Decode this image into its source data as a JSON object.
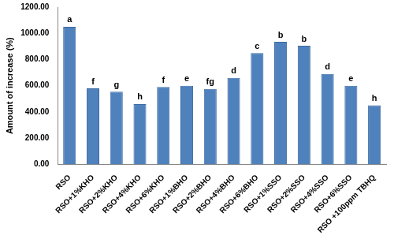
{
  "chart_data": {
    "type": "bar",
    "y_label": "Amount of increase (%)",
    "categories": [
      "RSO",
      "RSO+1%KHO",
      "RSO+2%KHO",
      "RSO+4%KHO",
      "RSO+6%KHO",
      "RSO+1%BHO",
      "RSO+2%BHO",
      "RSO+4%BHO",
      "RSO+6%BHO",
      "RSO+1%SSO",
      "RSO+2%SSO",
      "RSO+4%SSO",
      "RSO+6%SSO",
      "RSO +100ppm TBHQ"
    ],
    "values": [
      1050,
      580,
      555,
      460,
      590,
      600,
      575,
      660,
      850,
      935,
      905,
      690,
      600,
      450
    ],
    "color": "#4f81bd",
    "ylim": [
      0,
      1200
    ],
    "yticks": [
      {
        "value": 0,
        "label": "0.00"
      },
      {
        "value": 200,
        "label": "200.00"
      },
      {
        "value": 400,
        "label": "400.00"
      },
      {
        "value": 600,
        "label": "600.00"
      },
      {
        "value": 800,
        "label": "800.00"
      },
      {
        "value": 1000,
        "label": "1000.00"
      },
      {
        "value": 1200,
        "label": "1200.00"
      }
    ],
    "grid": false,
    "annotations": [
      {
        "category": "RSO",
        "text": "a"
      },
      {
        "category": "RSO+1%KHO",
        "text": "f"
      },
      {
        "category": "RSO+2%KHO",
        "text": "g"
      },
      {
        "category": "RSO+4%KHO",
        "text": "h"
      },
      {
        "category": "RSO+6%KHO",
        "text": "f"
      },
      {
        "category": "RSO+1%BHO",
        "text": "e"
      },
      {
        "category": "RSO+2%BHO",
        "text": "fg"
      },
      {
        "category": "RSO+4%BHO",
        "text": "d"
      },
      {
        "category": "RSO+6%BHO",
        "text": "c"
      },
      {
        "category": "RSO+1%SSO",
        "text": "b"
      },
      {
        "category": "RSO+2%SSO",
        "text": "b"
      },
      {
        "category": "RSO+4%SSO",
        "text": "d"
      },
      {
        "category": "RSO+6%SSO",
        "text": "e"
      },
      {
        "category": "RSO +100ppm TBHQ",
        "text": "h"
      }
    ]
  }
}
